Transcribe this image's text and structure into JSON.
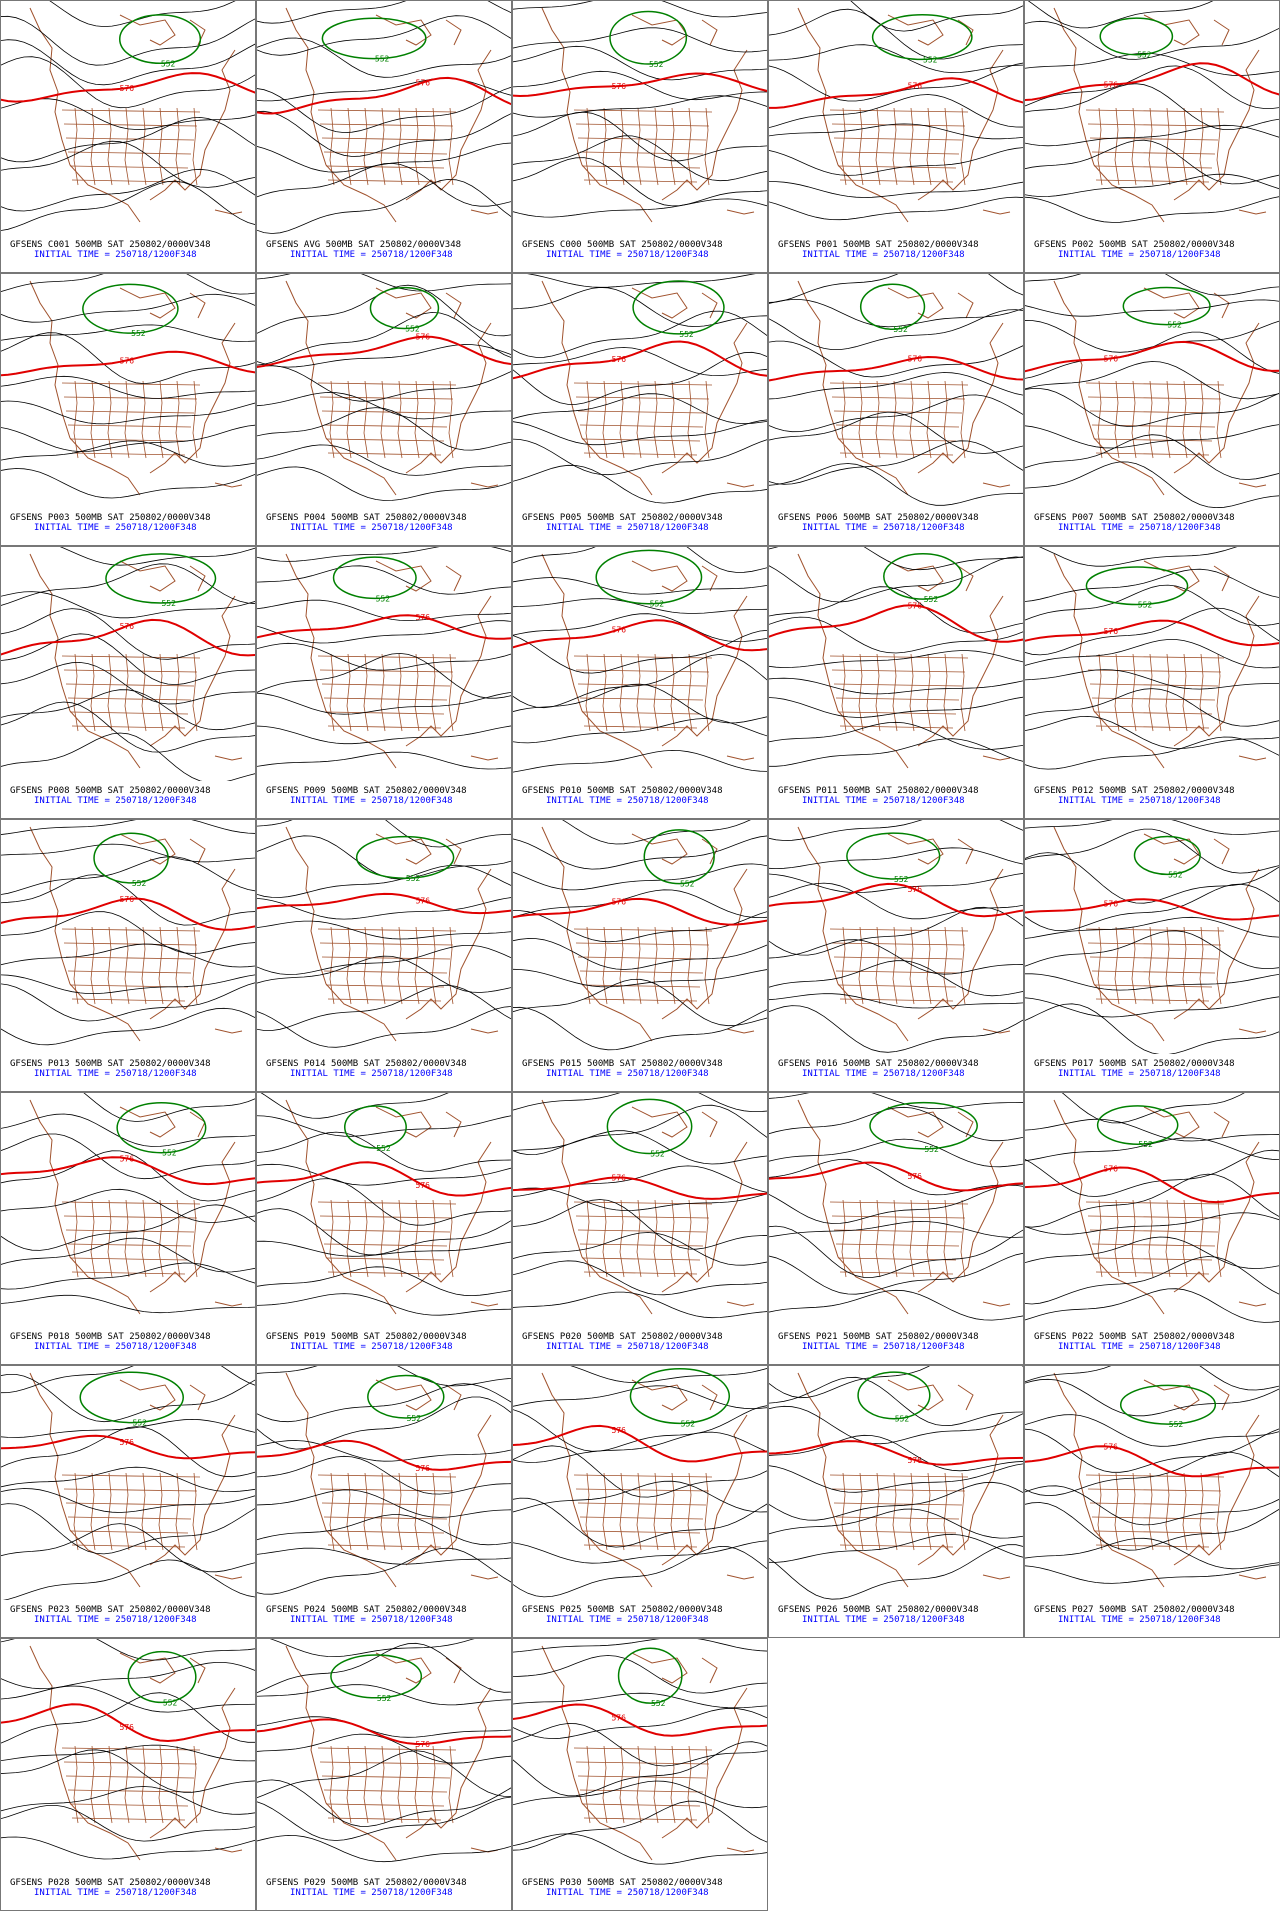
{
  "panels": [
    {
      "title": "GFSENS C001 500MB SAT 250802/0000V348",
      "init": "INITIAL TIME = 250718/1200F348",
      "contour_labels": [
        "576",
        "552"
      ]
    },
    {
      "title": "GFSENS AVG 500MB SAT 250802/0000V348",
      "init": "INITIAL TIME = 250718/1200F348",
      "contour_labels": [
        "576",
        "552"
      ]
    },
    {
      "title": "GFSENS C000 500MB SAT 250802/0000V348",
      "init": "INITIAL TIME = 250718/1200F348",
      "contour_labels": [
        "576",
        "552"
      ]
    },
    {
      "title": "GFSENS P001 500MB SAT 250802/0000V348",
      "init": "INITIAL TIME = 250718/1200F348",
      "contour_labels": [
        "576",
        "552"
      ]
    },
    {
      "title": "GFSENS P002 500MB SAT 250802/0000V348",
      "init": "INITIAL TIME = 250718/1200F348",
      "contour_labels": [
        "576",
        "552"
      ]
    },
    {
      "title": "GFSENS P003 500MB SAT 250802/0000V348",
      "init": "INITIAL TIME = 250718/1200F348",
      "contour_labels": [
        "576",
        "552"
      ]
    },
    {
      "title": "GFSENS P004 500MB SAT 250802/0000V348",
      "init": "INITIAL TIME = 250718/1200F348",
      "contour_labels": [
        "576",
        "552"
      ]
    },
    {
      "title": "GFSENS P005 500MB SAT 250802/0000V348",
      "init": "INITIAL TIME = 250718/1200F348",
      "contour_labels": [
        "576",
        "552"
      ]
    },
    {
      "title": "GFSENS P006 500MB SAT 250802/0000V348",
      "init": "INITIAL TIME = 250718/1200F348",
      "contour_labels": [
        "576",
        "552"
      ]
    },
    {
      "title": "GFSENS P007 500MB SAT 250802/0000V348",
      "init": "INITIAL TIME = 250718/1200F348",
      "contour_labels": [
        "576",
        "552"
      ]
    },
    {
      "title": "GFSENS P008 500MB SAT 250802/0000V348",
      "init": "INITIAL TIME = 250718/1200F348",
      "contour_labels": [
        "576",
        "552"
      ]
    },
    {
      "title": "GFSENS P009 500MB SAT 250802/0000V348",
      "init": "INITIAL TIME = 250718/1200F348",
      "contour_labels": [
        "576",
        "552"
      ]
    },
    {
      "title": "GFSENS P010 500MB SAT 250802/0000V348",
      "init": "INITIAL TIME = 250718/1200F348",
      "contour_labels": [
        "576",
        "552"
      ]
    },
    {
      "title": "GFSENS P011 500MB SAT 250802/0000V348",
      "init": "INITIAL TIME = 250718/1200F348",
      "contour_labels": [
        "576",
        "552"
      ]
    },
    {
      "title": "GFSENS P012 500MB SAT 250802/0000V348",
      "init": "INITIAL TIME = 250718/1200F348",
      "contour_labels": [
        "576",
        "552"
      ]
    },
    {
      "title": "GFSENS P013 500MB SAT 250802/0000V348",
      "init": "INITIAL TIME = 250718/1200F348",
      "contour_labels": [
        "576",
        "552"
      ]
    },
    {
      "title": "GFSENS P014 500MB SAT 250802/0000V348",
      "init": "INITIAL TIME = 250718/1200F348",
      "contour_labels": [
        "576",
        "552"
      ]
    },
    {
      "title": "GFSENS P015 500MB SAT 250802/0000V348",
      "init": "INITIAL TIME = 250718/1200F348",
      "contour_labels": [
        "576",
        "552"
      ]
    },
    {
      "title": "GFSENS P016 500MB SAT 250802/0000V348",
      "init": "INITIAL TIME = 250718/1200F348",
      "contour_labels": [
        "576",
        "552"
      ]
    },
    {
      "title": "GFSENS P017 500MB SAT 250802/0000V348",
      "init": "INITIAL TIME = 250718/1200F348",
      "contour_labels": [
        "576",
        "552"
      ]
    },
    {
      "title": "GFSENS P018 500MB SAT 250802/0000V348",
      "init": "INITIAL TIME = 250718/1200F348",
      "contour_labels": [
        "576",
        "552"
      ]
    },
    {
      "title": "GFSENS P019 500MB SAT 250802/0000V348",
      "init": "INITIAL TIME = 250718/1200F348",
      "contour_labels": [
        "576",
        "552"
      ]
    },
    {
      "title": "GFSENS P020 500MB SAT 250802/0000V348",
      "init": "INITIAL TIME = 250718/1200F348",
      "contour_labels": [
        "576",
        "552"
      ]
    },
    {
      "title": "GFSENS P021 500MB SAT 250802/0000V348",
      "init": "INITIAL TIME = 250718/1200F348",
      "contour_labels": [
        "576",
        "552"
      ]
    },
    {
      "title": "GFSENS P022 500MB SAT 250802/0000V348",
      "init": "INITIAL TIME = 250718/1200F348",
      "contour_labels": [
        "576",
        "552"
      ]
    },
    {
      "title": "GFSENS P023 500MB SAT 250802/0000V348",
      "init": "INITIAL TIME = 250718/1200F348",
      "contour_labels": [
        "576",
        "552"
      ]
    },
    {
      "title": "GFSENS P024 500MB SAT 250802/0000V348",
      "init": "INITIAL TIME = 250718/1200F348",
      "contour_labels": [
        "576",
        "552"
      ]
    },
    {
      "title": "GFSENS P025 500MB SAT 250802/0000V348",
      "init": "INITIAL TIME = 250718/1200F348",
      "contour_labels": [
        "576",
        "552"
      ]
    },
    {
      "title": "GFSENS P026 500MB SAT 250802/0000V348",
      "init": "INITIAL TIME = 250718/1200F348",
      "contour_labels": [
        "576",
        "552"
      ]
    },
    {
      "title": "GFSENS P027 500MB SAT 250802/0000V348",
      "init": "INITIAL TIME = 250718/1200F348",
      "contour_labels": [
        "576",
        "552"
      ]
    },
    {
      "title": "GFSENS P028 500MB SAT 250802/0000V348",
      "init": "INITIAL TIME = 250718/1200F348",
      "contour_labels": [
        "576",
        "552"
      ]
    },
    {
      "title": "GFSENS P029 500MB SAT 250802/0000V348",
      "init": "INITIAL TIME = 250718/1200F348",
      "contour_labels": [
        "576",
        "552"
      ]
    },
    {
      "title": "GFSENS P030 500MB SAT 250802/0000V348",
      "init": "INITIAL TIME = 250718/1200F348",
      "contour_labels": [
        "576",
        "552"
      ]
    }
  ]
}
